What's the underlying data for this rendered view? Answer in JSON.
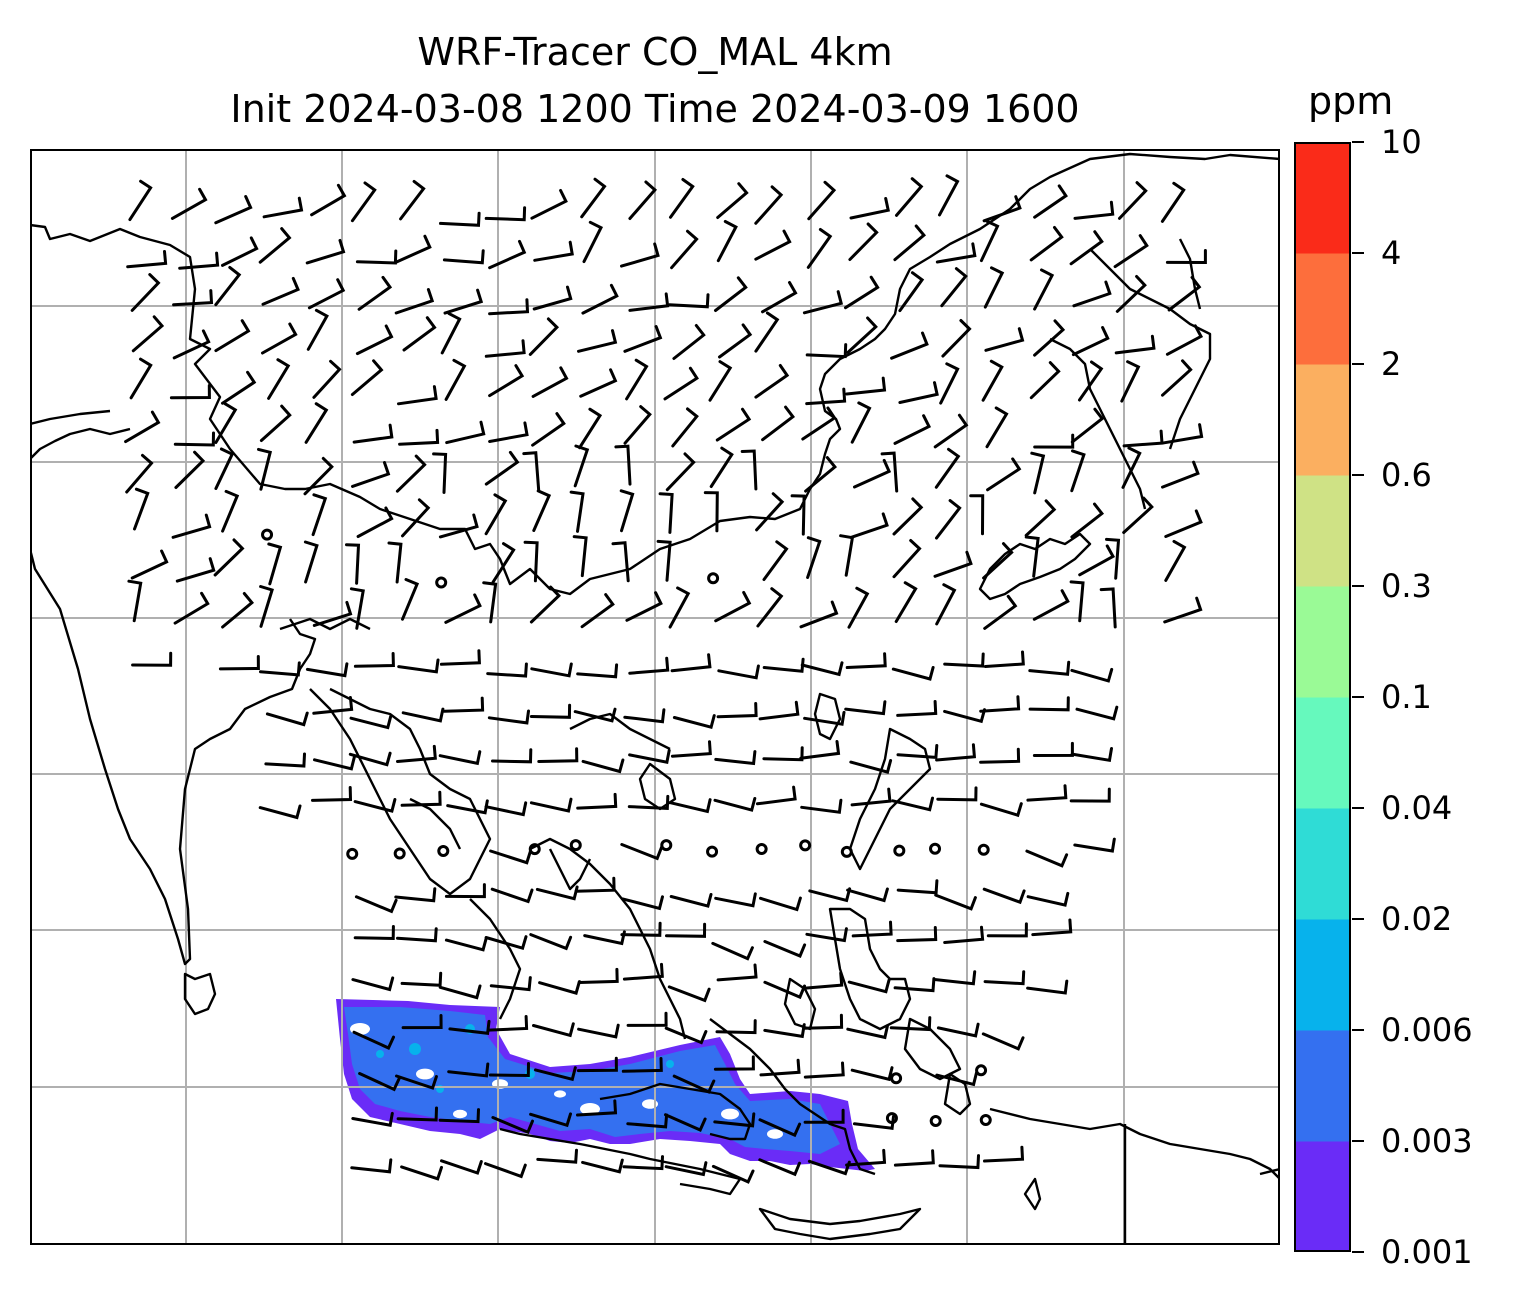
{
  "figure": {
    "title_line1": "WRF-Tracer CO_MAL 4km",
    "title_line2": "Init 2024-03-08 1200 Time 2024-03-09 1600"
  },
  "colorbar": {
    "unit": "ppm",
    "levels": [
      "0.001",
      "0.003",
      "0.006",
      "0.02",
      "0.04",
      "0.1",
      "0.3",
      "0.6",
      "2",
      "4",
      "10"
    ],
    "colors": [
      "#6a2cf7",
      "#3470f0",
      "#07b2ec",
      "#2fdcd6",
      "#66f9bd",
      "#9afa96",
      "#cfe285",
      "#fbaf60",
      "#fd6e3c",
      "#fa2b19"
    ]
  },
  "map": {
    "gridlines": "on",
    "gridline_color": "#b0b0b0",
    "coastline_color": "#000000",
    "wind_barb_color": "#000000",
    "tracer_fill_colors": [
      "#6a2cf7",
      "#3470f0",
      "#07b2ec"
    ]
  }
}
